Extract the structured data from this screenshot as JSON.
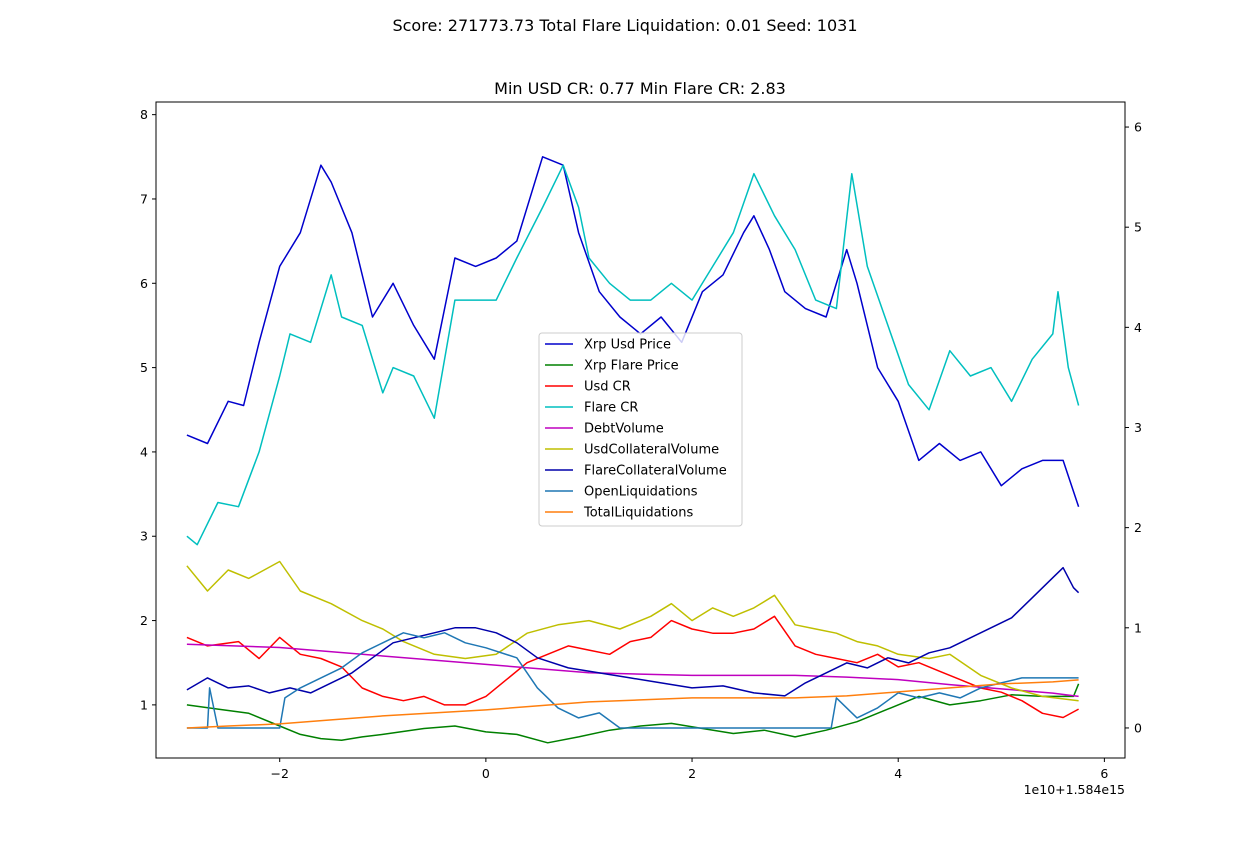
{
  "chart_data": {
    "type": "line",
    "suptitle": "Score: 271773.73 Total Flare Liquidation: 0.01 Seed: 1031",
    "title": "Min USD CR: 0.77 Min Flare CR: 2.83",
    "x_offset_label": "1e10+1.584e15",
    "xlim": [
      -3.2,
      6.2
    ],
    "ylim_left": [
      0.37,
      8.15
    ],
    "ylim_right": [
      -0.3,
      6.25
    ],
    "x_ticks": [
      -2,
      0,
      2,
      4,
      6
    ],
    "y_ticks_left": [
      1,
      2,
      3,
      4,
      5,
      6,
      7,
      8
    ],
    "y_ticks_right": [
      0,
      1,
      2,
      3,
      4,
      5,
      6
    ],
    "x_tick_labels": [
      "−2",
      "0",
      "2",
      "4",
      "6"
    ],
    "y_tick_labels_left": [
      "1",
      "2",
      "3",
      "4",
      "5",
      "6",
      "7",
      "8"
    ],
    "y_tick_labels_right": [
      "0",
      "1",
      "2",
      "3",
      "4",
      "5",
      "6"
    ],
    "legend_position": "center",
    "series": [
      {
        "name": "Xrp Usd Price",
        "color": "#0000cc",
        "axis": "left",
        "x": [
          -2.9,
          -2.7,
          -2.5,
          -2.35,
          -2.2,
          -2.0,
          -1.8,
          -1.6,
          -1.5,
          -1.3,
          -1.1,
          -0.9,
          -0.7,
          -0.5,
          -0.3,
          -0.1,
          0.1,
          0.3,
          0.55,
          0.75,
          0.9,
          1.1,
          1.3,
          1.5,
          1.7,
          1.9,
          2.1,
          2.3,
          2.5,
          2.6,
          2.75,
          2.9,
          3.1,
          3.3,
          3.5,
          3.6,
          3.8,
          4.0,
          4.2,
          4.4,
          4.6,
          4.8,
          5.0,
          5.2,
          5.4,
          5.6,
          5.75
        ],
        "y": [
          4.2,
          4.1,
          4.6,
          4.55,
          5.3,
          6.2,
          6.6,
          7.4,
          7.2,
          6.6,
          5.6,
          6.0,
          5.5,
          5.1,
          6.3,
          6.2,
          6.3,
          6.5,
          7.5,
          7.4,
          6.6,
          5.9,
          5.6,
          5.4,
          5.6,
          5.3,
          5.9,
          6.1,
          6.6,
          6.8,
          6.4,
          5.9,
          5.7,
          5.6,
          6.4,
          6.0,
          5.0,
          4.6,
          3.9,
          4.1,
          3.9,
          4.0,
          3.6,
          3.8,
          3.9,
          3.9,
          3.35
        ]
      },
      {
        "name": "Xrp Flare Price",
        "color": "#008000",
        "axis": "left",
        "x": [
          -2.9,
          -2.6,
          -2.3,
          -2.0,
          -1.8,
          -1.6,
          -1.4,
          -1.2,
          -1.0,
          -0.6,
          -0.3,
          0.0,
          0.3,
          0.6,
          0.9,
          1.2,
          1.5,
          1.8,
          2.1,
          2.4,
          2.7,
          3.0,
          3.3,
          3.6,
          3.9,
          4.2,
          4.5,
          4.8,
          5.1,
          5.4,
          5.7,
          5.75
        ],
        "y": [
          1.0,
          0.95,
          0.9,
          0.75,
          0.65,
          0.6,
          0.58,
          0.62,
          0.65,
          0.72,
          0.75,
          0.68,
          0.65,
          0.55,
          0.62,
          0.7,
          0.75,
          0.78,
          0.72,
          0.66,
          0.7,
          0.62,
          0.7,
          0.8,
          0.95,
          1.1,
          1.0,
          1.05,
          1.12,
          1.1,
          1.1,
          1.25
        ]
      },
      {
        "name": "Usd CR",
        "color": "#ff0000",
        "axis": "left",
        "x": [
          -2.9,
          -2.7,
          -2.4,
          -2.2,
          -2.0,
          -1.8,
          -1.6,
          -1.4,
          -1.2,
          -1.0,
          -0.8,
          -0.6,
          -0.4,
          -0.2,
          0.0,
          0.2,
          0.4,
          0.6,
          0.8,
          1.0,
          1.2,
          1.4,
          1.6,
          1.8,
          2.0,
          2.2,
          2.4,
          2.6,
          2.8,
          3.0,
          3.2,
          3.4,
          3.6,
          3.8,
          4.0,
          4.2,
          4.4,
          4.6,
          4.8,
          5.0,
          5.2,
          5.4,
          5.6,
          5.75
        ],
        "y": [
          1.8,
          1.7,
          1.75,
          1.55,
          1.8,
          1.6,
          1.55,
          1.45,
          1.2,
          1.1,
          1.05,
          1.1,
          1.0,
          1.0,
          1.1,
          1.3,
          1.5,
          1.6,
          1.7,
          1.65,
          1.6,
          1.75,
          1.8,
          2.0,
          1.9,
          1.85,
          1.85,
          1.9,
          2.05,
          1.7,
          1.6,
          1.55,
          1.5,
          1.6,
          1.45,
          1.5,
          1.4,
          1.3,
          1.2,
          1.15,
          1.05,
          0.9,
          0.85,
          0.95
        ]
      },
      {
        "name": "Flare CR",
        "color": "#00bfbf",
        "axis": "left",
        "x": [
          -2.9,
          -2.8,
          -2.6,
          -2.4,
          -2.2,
          -2.0,
          -1.9,
          -1.7,
          -1.5,
          -1.4,
          -1.2,
          -1.0,
          -0.9,
          -0.7,
          -0.5,
          -0.3,
          -0.1,
          0.1,
          0.3,
          0.55,
          0.75,
          0.9,
          1.0,
          1.2,
          1.4,
          1.6,
          1.8,
          2.0,
          2.2,
          2.4,
          2.6,
          2.8,
          3.0,
          3.2,
          3.4,
          3.55,
          3.7,
          3.9,
          4.1,
          4.3,
          4.5,
          4.7,
          4.9,
          5.1,
          5.3,
          5.5,
          5.55,
          5.65,
          5.75
        ],
        "y": [
          3.0,
          2.9,
          3.4,
          3.35,
          4.0,
          4.9,
          5.4,
          5.3,
          6.1,
          5.6,
          5.5,
          4.7,
          5.0,
          4.9,
          4.4,
          5.8,
          5.8,
          5.8,
          6.3,
          6.9,
          7.4,
          6.9,
          6.3,
          6.0,
          5.8,
          5.8,
          6.0,
          5.8,
          6.2,
          6.6,
          7.3,
          6.8,
          6.4,
          5.8,
          5.7,
          7.3,
          6.2,
          5.5,
          4.8,
          4.5,
          5.2,
          4.9,
          5.0,
          4.6,
          5.1,
          5.4,
          5.9,
          5.0,
          4.55
        ]
      },
      {
        "name": "DebtVolume",
        "color": "#bf00bf",
        "axis": "left",
        "x": [
          -2.9,
          -2.0,
          -1.0,
          0.0,
          1.0,
          2.0,
          3.0,
          3.5,
          4.0,
          4.5,
          5.0,
          5.5,
          5.75
        ],
        "y": [
          1.72,
          1.68,
          1.58,
          1.48,
          1.38,
          1.35,
          1.35,
          1.33,
          1.3,
          1.24,
          1.19,
          1.14,
          1.1
        ]
      },
      {
        "name": "UsdCollateralVolume",
        "color": "#bfbf00",
        "axis": "left",
        "x": [
          -2.9,
          -2.7,
          -2.5,
          -2.3,
          -2.0,
          -1.8,
          -1.5,
          -1.2,
          -1.0,
          -0.8,
          -0.5,
          -0.2,
          0.1,
          0.4,
          0.7,
          1.0,
          1.3,
          1.6,
          1.8,
          2.0,
          2.2,
          2.4,
          2.6,
          2.8,
          3.0,
          3.2,
          3.4,
          3.6,
          3.8,
          4.0,
          4.3,
          4.5,
          4.8,
          5.1,
          5.4,
          5.75
        ],
        "y": [
          2.65,
          2.35,
          2.6,
          2.5,
          2.7,
          2.35,
          2.2,
          2.0,
          1.9,
          1.75,
          1.6,
          1.55,
          1.6,
          1.85,
          1.95,
          2.0,
          1.9,
          2.05,
          2.2,
          2.0,
          2.15,
          2.05,
          2.15,
          2.3,
          1.95,
          1.9,
          1.85,
          1.75,
          1.7,
          1.6,
          1.55,
          1.6,
          1.35,
          1.2,
          1.1,
          1.05
        ]
      },
      {
        "name": "FlareCollateralVolume",
        "color": "#0000aa",
        "axis": "right",
        "x": [
          -2.9,
          -2.7,
          -2.5,
          -2.3,
          -2.1,
          -1.9,
          -1.7,
          -1.5,
          -1.3,
          -1.1,
          -0.9,
          -0.7,
          -0.5,
          -0.3,
          -0.1,
          0.1,
          0.3,
          0.5,
          0.8,
          1.1,
          1.4,
          1.7,
          2.0,
          2.3,
          2.6,
          2.9,
          3.1,
          3.3,
          3.5,
          3.7,
          3.9,
          4.1,
          4.3,
          4.5,
          4.7,
          4.9,
          5.1,
          5.3,
          5.5,
          5.6,
          5.7,
          5.75
        ],
        "y": [
          0.38,
          0.5,
          0.4,
          0.42,
          0.35,
          0.4,
          0.35,
          0.45,
          0.55,
          0.7,
          0.85,
          0.9,
          0.95,
          1.0,
          1.0,
          0.95,
          0.85,
          0.7,
          0.6,
          0.55,
          0.5,
          0.45,
          0.4,
          0.42,
          0.35,
          0.32,
          0.45,
          0.55,
          0.65,
          0.6,
          0.7,
          0.65,
          0.75,
          0.8,
          0.9,
          1.0,
          1.1,
          1.3,
          1.5,
          1.6,
          1.4,
          1.35
        ]
      },
      {
        "name": "OpenLiquidations",
        "color": "#1f77b4",
        "axis": "right",
        "x": [
          -2.9,
          -2.7,
          -2.68,
          -2.6,
          -2.0,
          -1.95,
          -1.8,
          -1.6,
          -1.4,
          -1.2,
          -1.0,
          -0.8,
          -0.6,
          -0.4,
          -0.2,
          0.0,
          0.3,
          0.5,
          0.7,
          0.9,
          1.1,
          1.3,
          2.0,
          3.0,
          3.35,
          3.4,
          3.6,
          3.8,
          4.0,
          4.2,
          4.4,
          4.6,
          4.8,
          5.0,
          5.2,
          5.4,
          5.75
        ],
        "y": [
          0.0,
          0.0,
          0.4,
          0.0,
          0.0,
          0.3,
          0.4,
          0.5,
          0.6,
          0.75,
          0.85,
          0.95,
          0.9,
          0.95,
          0.85,
          0.8,
          0.7,
          0.4,
          0.2,
          0.1,
          0.15,
          0.0,
          0.0,
          0.0,
          0.0,
          0.3,
          0.1,
          0.2,
          0.35,
          0.3,
          0.35,
          0.3,
          0.4,
          0.45,
          0.5,
          0.5,
          0.5
        ]
      },
      {
        "name": "TotalLiquidations",
        "color": "#ff7f0e",
        "axis": "right",
        "x": [
          -2.9,
          -2.5,
          -2.0,
          -1.5,
          -1.0,
          -0.5,
          0.0,
          0.5,
          1.0,
          1.5,
          2.0,
          2.5,
          3.0,
          3.5,
          4.0,
          4.5,
          5.0,
          5.5,
          5.75
        ],
        "y": [
          0.0,
          0.02,
          0.04,
          0.08,
          0.12,
          0.15,
          0.18,
          0.22,
          0.26,
          0.28,
          0.3,
          0.3,
          0.3,
          0.32,
          0.36,
          0.4,
          0.44,
          0.46,
          0.48
        ]
      }
    ]
  }
}
